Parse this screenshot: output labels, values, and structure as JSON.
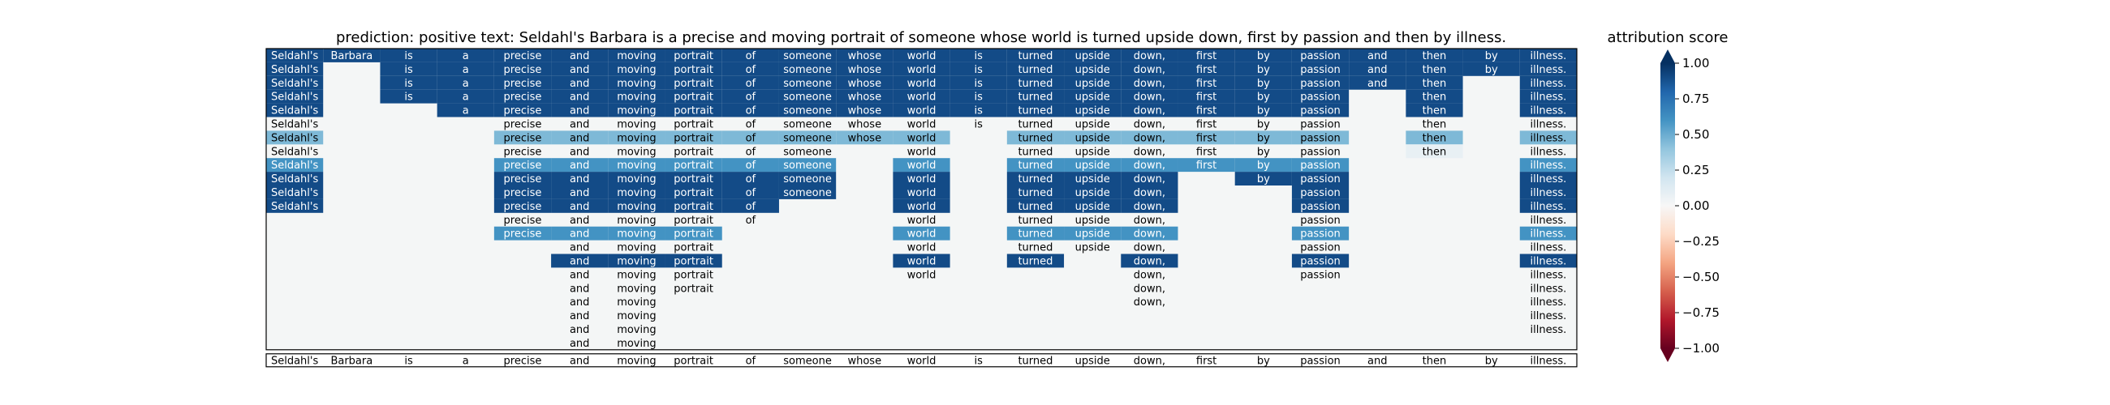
{
  "chart_data": {
    "type": "heatmap",
    "title": "prediction:  positive      text:  Seldahl's Barbara is a precise and moving portrait of someone whose world is turned upside down, first by passion and then by illness.",
    "tokens": [
      "Seldahl's",
      "Barbara",
      "is",
      "a",
      "precise",
      "and",
      "moving",
      "portrait",
      "of",
      "someone",
      "whose",
      "world",
      "is",
      "turned",
      "upside",
      "down,",
      "first",
      "by",
      "passion",
      "and",
      "then",
      "by",
      "illness."
    ],
    "colorbar": {
      "label": "attribution score",
      "range": [
        -1.0,
        1.0
      ],
      "ticks": [
        1.0,
        0.75,
        0.5,
        0.25,
        0.0,
        -0.25,
        -0.5,
        -0.75,
        -1.0
      ],
      "tick_labels": [
        "1.00",
        "0.75",
        "0.50",
        "0.25",
        "0.00",
        "−0.25",
        "−0.50",
        "−0.75",
        "−1.00"
      ],
      "colormap": "RdBu"
    },
    "grid": [
      [
        0.9,
        0.9,
        0.9,
        0.9,
        0.9,
        0.9,
        0.9,
        0.9,
        0.9,
        0.9,
        0.9,
        0.9,
        0.9,
        0.9,
        0.9,
        0.9,
        0.9,
        0.9,
        0.9,
        0.9,
        0.9,
        0.9,
        0.9
      ],
      [
        0.9,
        0.0,
        0.9,
        0.9,
        0.9,
        0.9,
        0.9,
        0.9,
        0.9,
        0.9,
        0.9,
        0.9,
        0.9,
        0.9,
        0.9,
        0.9,
        0.9,
        0.9,
        0.9,
        0.9,
        0.9,
        0.9,
        0.9
      ],
      [
        0.9,
        0.0,
        0.9,
        0.9,
        0.9,
        0.9,
        0.9,
        0.9,
        0.9,
        0.9,
        0.9,
        0.9,
        0.9,
        0.9,
        0.9,
        0.9,
        0.9,
        0.9,
        0.9,
        0.9,
        0.9,
        0.0,
        0.9
      ],
      [
        0.9,
        0.0,
        0.9,
        0.9,
        0.9,
        0.9,
        0.9,
        0.9,
        0.9,
        0.9,
        0.9,
        0.9,
        0.9,
        0.9,
        0.9,
        0.9,
        0.9,
        0.9,
        0.9,
        0.0,
        0.9,
        0.0,
        0.9
      ],
      [
        0.9,
        0.0,
        0.0,
        0.9,
        0.9,
        0.9,
        0.9,
        0.9,
        0.9,
        0.9,
        0.9,
        0.9,
        0.9,
        0.9,
        0.9,
        0.9,
        0.9,
        0.9,
        0.9,
        0.0,
        0.9,
        0.0,
        0.9
      ],
      [
        0.0,
        0.0,
        0.0,
        0.0,
        0.0,
        0.0,
        0.0,
        0.0,
        0.0,
        0.0,
        0.0,
        0.0,
        0.0,
        0.0,
        0.0,
        0.0,
        0.0,
        0.0,
        0.0,
        0.0,
        0.0,
        0.0,
        0.0
      ],
      [
        0.45,
        0.0,
        0.0,
        0.0,
        0.45,
        0.45,
        0.45,
        0.45,
        0.45,
        0.45,
        0.45,
        0.45,
        0.0,
        0.45,
        0.45,
        0.45,
        0.45,
        0.45,
        0.45,
        0.0,
        0.45,
        0.0,
        0.45
      ],
      [
        0.0,
        0.0,
        0.0,
        0.0,
        0.0,
        0.0,
        0.0,
        0.0,
        0.0,
        0.0,
        0.0,
        0.0,
        0.0,
        0.0,
        0.0,
        0.0,
        0.0,
        0.0,
        0.0,
        0.0,
        0.08,
        0.0,
        0.0
      ],
      [
        0.6,
        0.0,
        0.0,
        0.0,
        0.6,
        0.6,
        0.6,
        0.6,
        0.6,
        0.6,
        0.0,
        0.6,
        0.0,
        0.6,
        0.6,
        0.6,
        0.6,
        0.6,
        0.6,
        0.0,
        0.0,
        0.0,
        0.6
      ],
      [
        0.9,
        0.0,
        0.0,
        0.0,
        0.9,
        0.9,
        0.9,
        0.9,
        0.9,
        0.9,
        0.0,
        0.9,
        0.0,
        0.9,
        0.9,
        0.9,
        0.0,
        0.9,
        0.9,
        0.0,
        0.0,
        0.0,
        0.9
      ],
      [
        0.9,
        0.0,
        0.0,
        0.0,
        0.9,
        0.9,
        0.9,
        0.9,
        0.9,
        0.9,
        0.0,
        0.9,
        0.0,
        0.9,
        0.9,
        0.9,
        0.0,
        0.0,
        0.9,
        0.0,
        0.0,
        0.0,
        0.9
      ],
      [
        0.9,
        0.0,
        0.0,
        0.0,
        0.9,
        0.9,
        0.9,
        0.9,
        0.9,
        0.0,
        0.0,
        0.9,
        0.0,
        0.9,
        0.9,
        0.9,
        0.0,
        0.0,
        0.9,
        0.0,
        0.0,
        0.0,
        0.9
      ],
      [
        0.0,
        0.0,
        0.0,
        0.0,
        0.0,
        0.0,
        0.0,
        0.0,
        0.0,
        0.0,
        0.0,
        0.0,
        0.0,
        0.0,
        0.0,
        0.0,
        0.0,
        0.0,
        0.0,
        0.0,
        0.0,
        0.0,
        0.0
      ],
      [
        0.0,
        0.0,
        0.0,
        0.0,
        0.6,
        0.6,
        0.6,
        0.6,
        0.0,
        0.0,
        0.0,
        0.6,
        0.0,
        0.6,
        0.6,
        0.6,
        0.0,
        0.0,
        0.6,
        0.0,
        0.0,
        0.0,
        0.6
      ],
      [
        0.0,
        0.0,
        0.0,
        0.0,
        0.0,
        0.0,
        0.0,
        0.0,
        0.0,
        0.0,
        0.0,
        0.0,
        0.0,
        0.0,
        0.0,
        0.0,
        0.0,
        0.0,
        0.0,
        0.0,
        0.0,
        0.0,
        0.0
      ],
      [
        0.0,
        0.0,
        0.0,
        0.0,
        0.0,
        0.9,
        0.9,
        0.9,
        0.0,
        0.0,
        0.0,
        0.9,
        0.0,
        0.9,
        0.0,
        0.9,
        0.0,
        0.0,
        0.9,
        0.0,
        0.0,
        0.0,
        0.9
      ],
      [
        0.0,
        0.0,
        0.0,
        0.0,
        0.0,
        0.0,
        0.0,
        0.0,
        0.0,
        0.0,
        0.0,
        0.0,
        0.0,
        0.0,
        0.0,
        0.0,
        0.0,
        0.0,
        0.0,
        0.0,
        0.0,
        0.0,
        0.0
      ],
      [
        0.0,
        0.0,
        0.0,
        0.0,
        0.0,
        0.0,
        0.0,
        0.0,
        0.0,
        0.0,
        0.0,
        0.0,
        0.0,
        0.0,
        0.0,
        0.0,
        0.0,
        0.0,
        0.0,
        0.0,
        0.0,
        0.0,
        0.0
      ],
      [
        0.0,
        0.0,
        0.0,
        0.0,
        0.0,
        0.0,
        0.0,
        0.0,
        0.0,
        0.0,
        0.0,
        0.0,
        0.0,
        0.0,
        0.0,
        0.0,
        0.0,
        0.0,
        0.0,
        0.0,
        0.0,
        0.0,
        0.0
      ],
      [
        0.0,
        0.0,
        0.0,
        0.0,
        0.0,
        0.0,
        0.0,
        0.0,
        0.0,
        0.0,
        0.0,
        0.0,
        0.0,
        0.0,
        0.0,
        0.0,
        0.0,
        0.0,
        0.0,
        0.0,
        0.0,
        0.0,
        0.0
      ],
      [
        0.0,
        0.0,
        0.0,
        0.0,
        0.0,
        0.0,
        0.0,
        0.0,
        0.0,
        0.0,
        0.0,
        0.0,
        0.0,
        0.0,
        0.0,
        0.0,
        0.0,
        0.0,
        0.0,
        0.0,
        0.0,
        0.0,
        0.0
      ],
      [
        0.0,
        0.0,
        0.0,
        0.0,
        0.0,
        0.0,
        0.0,
        0.0,
        0.0,
        0.0,
        0.0,
        0.0,
        0.0,
        0.0,
        0.0,
        0.0,
        0.0,
        0.0,
        0.0,
        0.0,
        0.0,
        0.0,
        0.0
      ]
    ],
    "present": [
      [
        1,
        1,
        1,
        1,
        1,
        1,
        1,
        1,
        1,
        1,
        1,
        1,
        1,
        1,
        1,
        1,
        1,
        1,
        1,
        1,
        1,
        1,
        1
      ],
      [
        1,
        0,
        1,
        1,
        1,
        1,
        1,
        1,
        1,
        1,
        1,
        1,
        1,
        1,
        1,
        1,
        1,
        1,
        1,
        1,
        1,
        1,
        1
      ],
      [
        1,
        0,
        1,
        1,
        1,
        1,
        1,
        1,
        1,
        1,
        1,
        1,
        1,
        1,
        1,
        1,
        1,
        1,
        1,
        1,
        1,
        0,
        1
      ],
      [
        1,
        0,
        1,
        1,
        1,
        1,
        1,
        1,
        1,
        1,
        1,
        1,
        1,
        1,
        1,
        1,
        1,
        1,
        1,
        0,
        1,
        0,
        1
      ],
      [
        1,
        0,
        0,
        1,
        1,
        1,
        1,
        1,
        1,
        1,
        1,
        1,
        1,
        1,
        1,
        1,
        1,
        1,
        1,
        0,
        1,
        0,
        1
      ],
      [
        1,
        0,
        0,
        0,
        1,
        1,
        1,
        1,
        1,
        1,
        1,
        1,
        1,
        1,
        1,
        1,
        1,
        1,
        1,
        0,
        1,
        0,
        1
      ],
      [
        1,
        0,
        0,
        0,
        1,
        1,
        1,
        1,
        1,
        1,
        1,
        1,
        0,
        1,
        1,
        1,
        1,
        1,
        1,
        0,
        1,
        0,
        1
      ],
      [
        1,
        0,
        0,
        0,
        1,
        1,
        1,
        1,
        1,
        1,
        0,
        1,
        0,
        1,
        1,
        1,
        1,
        1,
        1,
        0,
        1,
        0,
        1
      ],
      [
        1,
        0,
        0,
        0,
        1,
        1,
        1,
        1,
        1,
        1,
        0,
        1,
        0,
        1,
        1,
        1,
        1,
        1,
        1,
        0,
        0,
        0,
        1
      ],
      [
        1,
        0,
        0,
        0,
        1,
        1,
        1,
        1,
        1,
        1,
        0,
        1,
        0,
        1,
        1,
        1,
        0,
        1,
        1,
        0,
        0,
        0,
        1
      ],
      [
        1,
        0,
        0,
        0,
        1,
        1,
        1,
        1,
        1,
        1,
        0,
        1,
        0,
        1,
        1,
        1,
        0,
        0,
        1,
        0,
        0,
        0,
        1
      ],
      [
        1,
        0,
        0,
        0,
        1,
        1,
        1,
        1,
        1,
        0,
        0,
        1,
        0,
        1,
        1,
        1,
        0,
        0,
        1,
        0,
        0,
        0,
        1
      ],
      [
        0,
        0,
        0,
        0,
        1,
        1,
        1,
        1,
        1,
        0,
        0,
        1,
        0,
        1,
        1,
        1,
        0,
        0,
        1,
        0,
        0,
        0,
        1
      ],
      [
        0,
        0,
        0,
        0,
        1,
        1,
        1,
        1,
        0,
        0,
        0,
        1,
        0,
        1,
        1,
        1,
        0,
        0,
        1,
        0,
        0,
        0,
        1
      ],
      [
        0,
        0,
        0,
        0,
        0,
        1,
        1,
        1,
        0,
        0,
        0,
        1,
        0,
        1,
        1,
        1,
        0,
        0,
        1,
        0,
        0,
        0,
        1
      ],
      [
        0,
        0,
        0,
        0,
        0,
        1,
        1,
        1,
        0,
        0,
        0,
        1,
        0,
        1,
        0,
        1,
        0,
        0,
        1,
        0,
        0,
        0,
        1
      ],
      [
        0,
        0,
        0,
        0,
        0,
        1,
        1,
        1,
        0,
        0,
        0,
        1,
        0,
        0,
        0,
        1,
        0,
        0,
        1,
        0,
        0,
        0,
        1
      ],
      [
        0,
        0,
        0,
        0,
        0,
        1,
        1,
        1,
        0,
        0,
        0,
        0,
        0,
        0,
        0,
        1,
        0,
        0,
        0,
        0,
        0,
        0,
        1
      ],
      [
        0,
        0,
        0,
        0,
        0,
        1,
        1,
        0,
        0,
        0,
        0,
        0,
        0,
        0,
        0,
        1,
        0,
        0,
        0,
        0,
        0,
        0,
        1
      ],
      [
        0,
        0,
        0,
        0,
        0,
        1,
        1,
        0,
        0,
        0,
        0,
        0,
        0,
        0,
        0,
        0,
        0,
        0,
        0,
        0,
        0,
        0,
        1
      ],
      [
        0,
        0,
        0,
        0,
        0,
        1,
        1,
        0,
        0,
        0,
        0,
        0,
        0,
        0,
        0,
        0,
        0,
        0,
        0,
        0,
        0,
        0,
        1
      ],
      [
        0,
        0,
        0,
        0,
        0,
        1,
        1,
        0,
        0,
        0,
        0,
        0,
        0,
        0,
        0,
        0,
        0,
        0,
        0,
        0,
        0,
        0,
        0
      ]
    ]
  }
}
